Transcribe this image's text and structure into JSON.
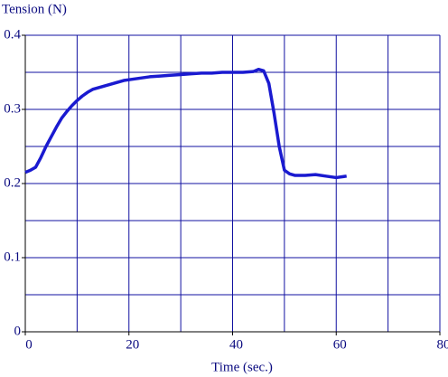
{
  "chart_data": {
    "type": "line",
    "title": "Tension (N)",
    "x_label": "Time (sec.)",
    "color": "#1a1ad0",
    "grid": true,
    "xlim": [
      0,
      80
    ],
    "ylim": [
      0,
      0.4
    ],
    "xticks": [
      0,
      20,
      40,
      60,
      80
    ],
    "yticks": [
      0,
      0.1,
      0.2,
      0.3,
      0.4
    ],
    "xgrid": [
      0,
      10,
      20,
      30,
      40,
      50,
      60,
      70,
      80
    ],
    "ygrid": [
      0,
      0.05,
      0.1,
      0.15,
      0.2,
      0.25,
      0.3,
      0.35,
      0.4
    ],
    "x": [
      0,
      1,
      2,
      3,
      4,
      5,
      6,
      7,
      8,
      9,
      10,
      11,
      12,
      13,
      14,
      15,
      16,
      17,
      18,
      19,
      20,
      22,
      24,
      26,
      28,
      30,
      32,
      34,
      36,
      38,
      40,
      42,
      44,
      45,
      46,
      47,
      48,
      49,
      50,
      51,
      52,
      54,
      56,
      58,
      60,
      62
    ],
    "series": [
      {
        "name": "Tension",
        "values": [
          0.215,
          0.218,
          0.222,
          0.235,
          0.25,
          0.263,
          0.276,
          0.288,
          0.297,
          0.305,
          0.312,
          0.318,
          0.323,
          0.327,
          0.329,
          0.331,
          0.333,
          0.335,
          0.337,
          0.339,
          0.34,
          0.342,
          0.344,
          0.345,
          0.346,
          0.347,
          0.348,
          0.349,
          0.349,
          0.35,
          0.35,
          0.35,
          0.351,
          0.354,
          0.352,
          0.335,
          0.295,
          0.25,
          0.218,
          0.213,
          0.211,
          0.211,
          0.212,
          0.21,
          0.208,
          0.21
        ]
      }
    ]
  }
}
